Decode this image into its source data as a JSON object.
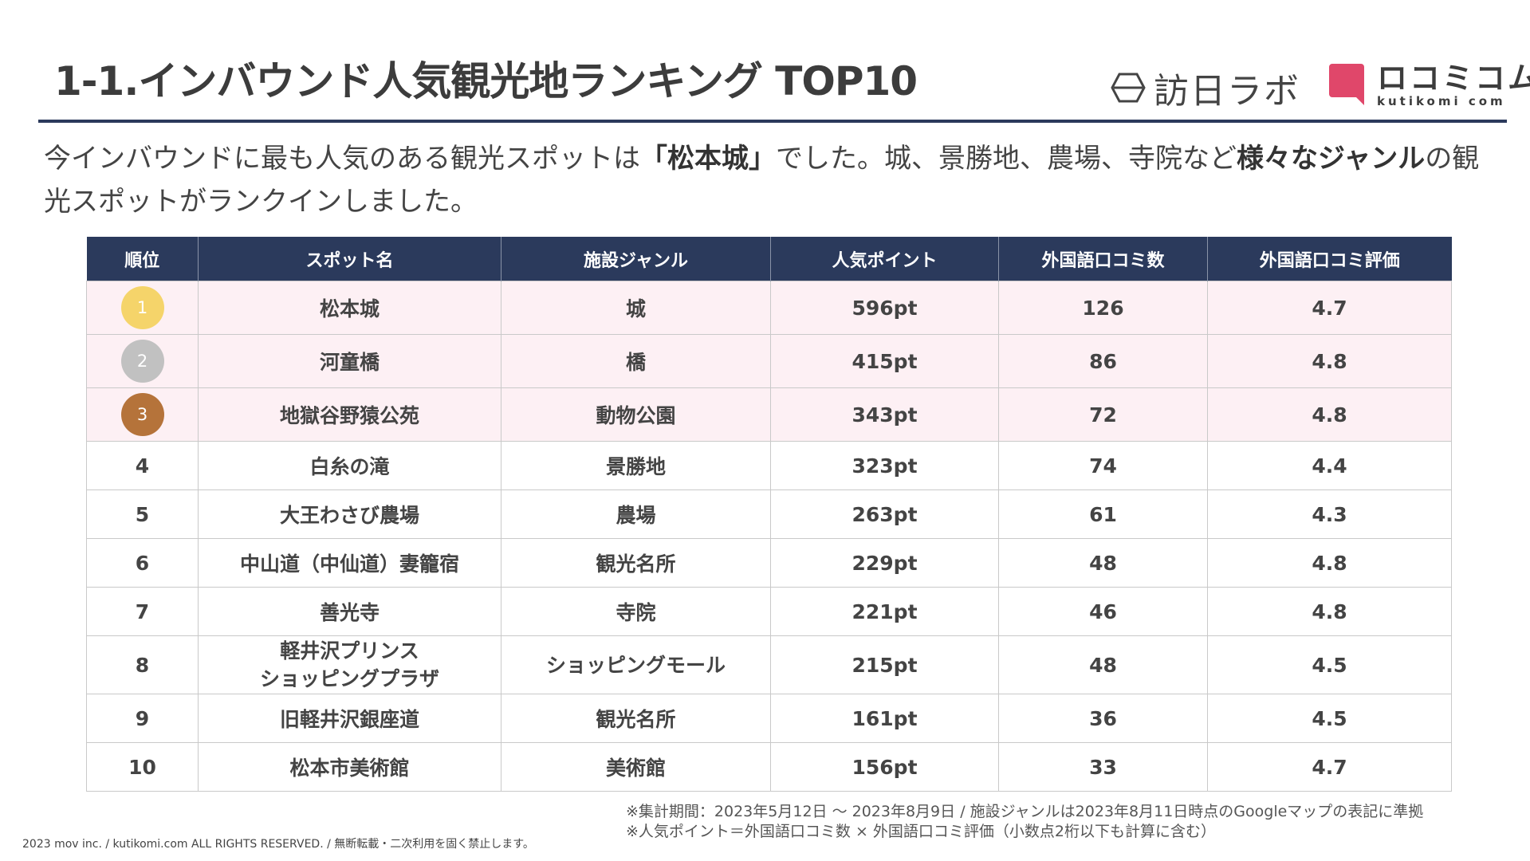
{
  "header": {
    "title": "1-1.インバウンド人気観光地ランキング TOP10",
    "logo1_text": "訪日ラボ",
    "logo2_text": "ロコミコム",
    "logo2_sub": "kutikomi com",
    "rule_color": "#2b3a5c"
  },
  "intro": {
    "part1": "今インバウンドに最も人気のある観光スポットは",
    "highlight1": "「松本城」",
    "part2": "でした。城、景勝地、農場、寺院など",
    "highlight2": "様々なジャンル",
    "part3": "の観光スポットがランクインしました。"
  },
  "table": {
    "headers": [
      "順位",
      "スポット名",
      "施設ジャンル",
      "人気ポイント",
      "外国語口コミ数",
      "外国語口コミ評価"
    ],
    "medal_colors": [
      "#f5d46a",
      "#c1c1c1",
      "#b5733a"
    ],
    "rows": [
      {
        "rank": "1",
        "spot": "松本城",
        "genre": "城",
        "points": "596pt",
        "reviews": "126",
        "rating": "4.7"
      },
      {
        "rank": "2",
        "spot": "河童橋",
        "genre": "橋",
        "points": "415pt",
        "reviews": "86",
        "rating": "4.8"
      },
      {
        "rank": "3",
        "spot": "地獄谷野猿公苑",
        "genre": "動物公園",
        "points": "343pt",
        "reviews": "72",
        "rating": "4.8"
      },
      {
        "rank": "4",
        "spot": "白糸の滝",
        "genre": "景勝地",
        "points": "323pt",
        "reviews": "74",
        "rating": "4.4"
      },
      {
        "rank": "5",
        "spot": "大王わさび農場",
        "genre": "農場",
        "points": "263pt",
        "reviews": "61",
        "rating": "4.3"
      },
      {
        "rank": "6",
        "spot": "中山道（中仙道）妻籠宿",
        "genre": "観光名所",
        "points": "229pt",
        "reviews": "48",
        "rating": "4.8"
      },
      {
        "rank": "7",
        "spot": "善光寺",
        "genre": "寺院",
        "points": "221pt",
        "reviews": "46",
        "rating": "4.8"
      },
      {
        "rank": "8",
        "spot_line1": "軽井沢プリンス",
        "spot_line2": "ショッピングプラザ",
        "genre": "ショッピングモール",
        "points": "215pt",
        "reviews": "48",
        "rating": "4.5"
      },
      {
        "rank": "9",
        "spot": "旧軽井沢銀座道",
        "genre": "観光名所",
        "points": "161pt",
        "reviews": "36",
        "rating": "4.5"
      },
      {
        "rank": "10",
        "spot": "松本市美術館",
        "genre": "美術館",
        "points": "156pt",
        "reviews": "33",
        "rating": "4.7"
      }
    ]
  },
  "notes": {
    "line1": "※集計期間：2023年5月12日 〜 2023年8月9日 / 施設ジャンルは2023年8月11日時点のGoogleマップの表記に準拠",
    "line2": "※人気ポイント＝外国語口コミ数 × 外国語口コミ評価（小数点2桁以下も計算に含む）"
  },
  "footer": "2023 mov inc. / kutikomi.com ALL RIGHTS RESERVED. / 無断転載・二次利用を固く禁止します。"
}
